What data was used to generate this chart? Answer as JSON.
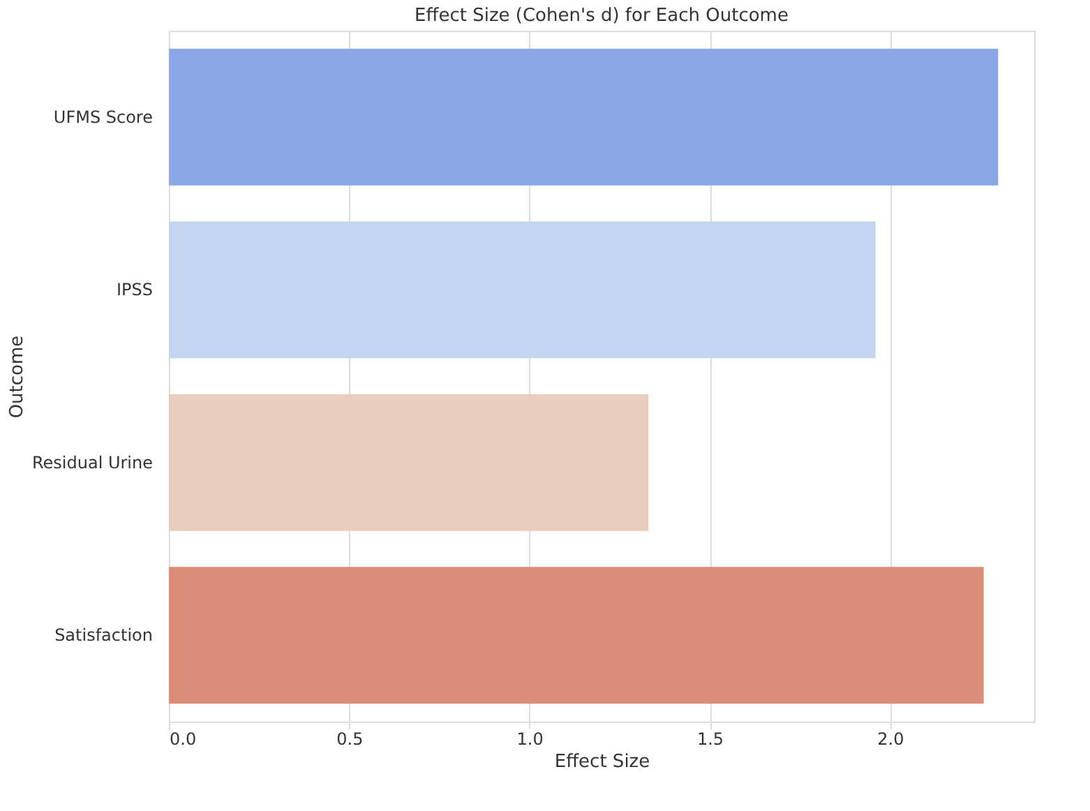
{
  "chart_data": {
    "type": "bar",
    "orientation": "horizontal",
    "title": "Effect Size (Cohen's d) for Each Outcome",
    "xlabel": "Effect Size",
    "ylabel": "Outcome",
    "categories": [
      "UFMS Score",
      "IPSS",
      "Residual Urine",
      "Satisfaction"
    ],
    "values": [
      2.3,
      1.96,
      1.33,
      2.26
    ],
    "colors": [
      "#8aa8e8",
      "#c6d5ef",
      "#e9cdbf",
      "#db8c77"
    ],
    "xlim": [
      0,
      2.4
    ],
    "xticks": [
      {
        "value": 0,
        "label": "0.0"
      },
      0.5,
      {
        "value": 1,
        "label": "1.0"
      },
      1.5,
      {
        "value": 2,
        "label": "2.0"
      }
    ],
    "grid": "x",
    "legend": false
  }
}
